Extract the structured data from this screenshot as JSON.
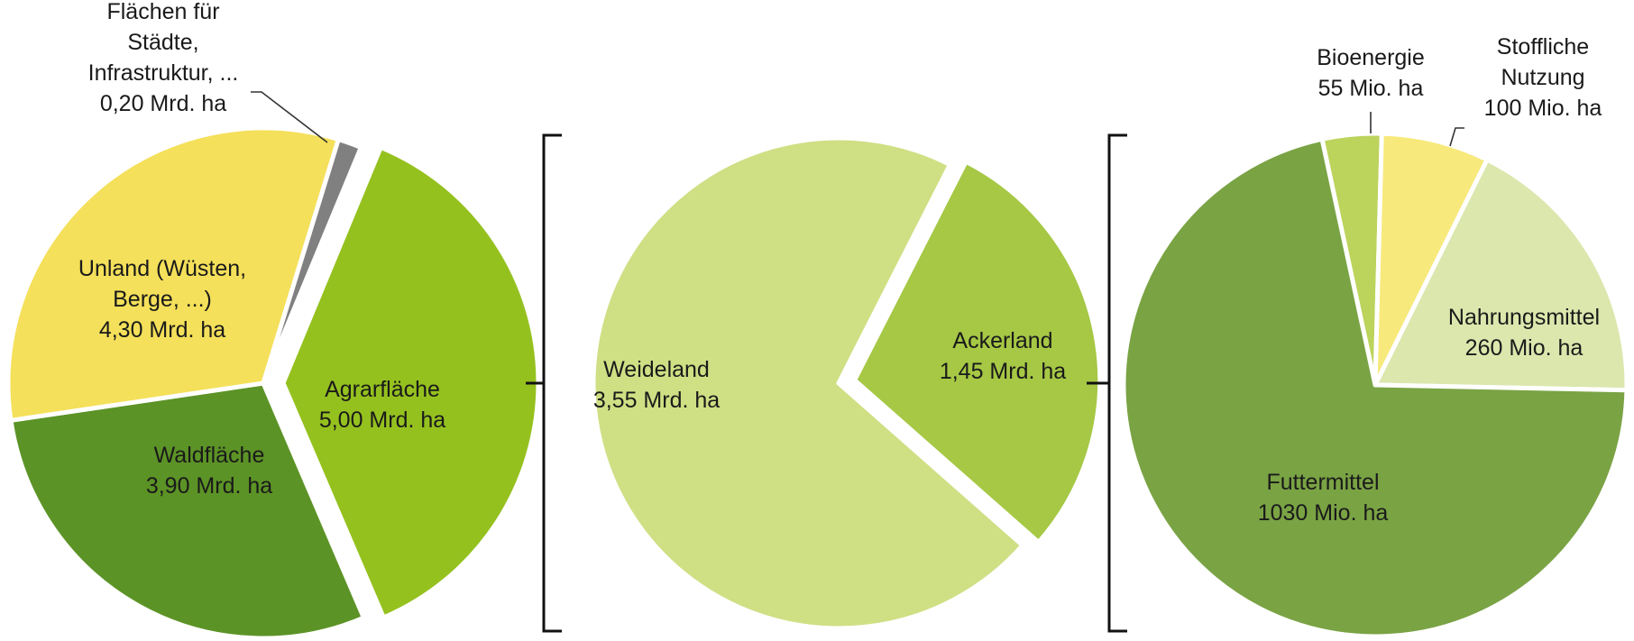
{
  "chart_data": [
    {
      "type": "pie",
      "slices": [
        {
          "key": "agrar",
          "label_lines": [
            "Agrarfläche",
            "5,00 Mrd. ha"
          ],
          "value": 5.0,
          "color": "#95c11f",
          "exploded": true
        },
        {
          "key": "wald",
          "label_lines": [
            "Waldfläche",
            "3,90 Mrd. ha"
          ],
          "value": 3.9,
          "color": "#5c9326",
          "exploded": false
        },
        {
          "key": "unland",
          "label_lines": [
            "Unland (Wüsten,",
            "Berge, ...)",
            "4,30 Mrd. ha"
          ],
          "value": 4.3,
          "color": "#f4e05a",
          "exploded": false
        },
        {
          "key": "staedte",
          "label_lines": [
            "Flächen für",
            "Städte,",
            "Infrastruktur, ...",
            "0,20 Mrd. ha"
          ],
          "value": 0.2,
          "color": "#808080",
          "exploded": false
        }
      ]
    },
    {
      "type": "pie",
      "slices": [
        {
          "key": "acker",
          "label_lines": [
            "Ackerland",
            "1,45 Mrd. ha"
          ],
          "value": 1.45,
          "color": "#a6c845",
          "exploded": true
        },
        {
          "key": "weide",
          "label_lines": [
            "Weideland",
            "3,55 Mrd. ha"
          ],
          "value": 3.55,
          "color": "#cfdf84",
          "exploded": false
        }
      ]
    },
    {
      "type": "pie",
      "slices": [
        {
          "key": "bio",
          "label_lines": [
            "Bioenergie",
            "55 Mio. ha"
          ],
          "value": 55,
          "color": "#bcd35c",
          "exploded": false
        },
        {
          "key": "stoff",
          "label_lines": [
            "Stoffliche",
            "Nutzung",
            "100 Mio. ha"
          ],
          "value": 100,
          "color": "#f7e97c",
          "exploded": false
        },
        {
          "key": "nahrung",
          "label_lines": [
            "Nahrungsmittel",
            "260 Mio. ha"
          ],
          "value": 260,
          "color": "#dbe7ad",
          "exploded": false
        },
        {
          "key": "futter",
          "label_lines": [
            "Futtermittel",
            "1030 Mio. ha"
          ],
          "value": 1030,
          "color": "#7aa344",
          "exploded": false
        }
      ]
    }
  ]
}
